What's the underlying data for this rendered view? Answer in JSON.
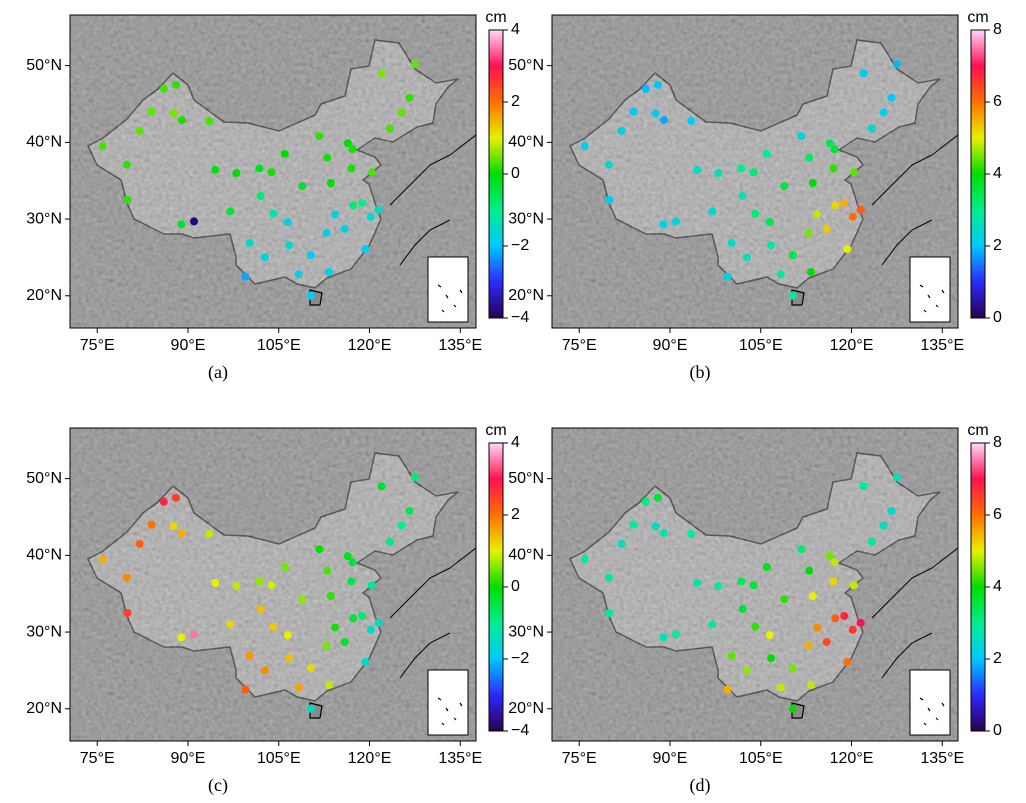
{
  "xlim": [
    70.5,
    137.6
  ],
  "ylim": [
    15.8,
    56.6
  ],
  "xticks": [
    {
      "value": 75,
      "label": "75°E"
    },
    {
      "value": 90,
      "label": "90°E"
    },
    {
      "value": 105,
      "label": "105°E"
    },
    {
      "value": 120,
      "label": "120°E"
    },
    {
      "value": 135,
      "label": "135°E"
    }
  ],
  "yticks": [
    {
      "value": 20,
      "label": "20°N"
    },
    {
      "value": 30,
      "label": "30°N"
    },
    {
      "value": 40,
      "label": "40°N"
    },
    {
      "value": 50,
      "label": "50°N"
    }
  ],
  "stations": [
    [
      75.9,
      39.5
    ],
    [
      79.9,
      37.1
    ],
    [
      84,
      44
    ],
    [
      87.6,
      43.8
    ],
    [
      86,
      47
    ],
    [
      88,
      47.5
    ],
    [
      82,
      41.5
    ],
    [
      89,
      42.9
    ],
    [
      93.5,
      42.8
    ],
    [
      91,
      29.7
    ],
    [
      88.9,
      29.3
    ],
    [
      80,
      32.5
    ],
    [
      94.5,
      36.4
    ],
    [
      98,
      36
    ],
    [
      101.8,
      36.6
    ],
    [
      103.8,
      36.1
    ],
    [
      106,
      38.5
    ],
    [
      111.7,
      40.8
    ],
    [
      116.4,
      39.9
    ],
    [
      117.2,
      39.1
    ],
    [
      123.4,
      41.8
    ],
    [
      125.3,
      43.9
    ],
    [
      126.6,
      45.8
    ],
    [
      122,
      49
    ],
    [
      127.5,
      50.2
    ],
    [
      113,
      38
    ],
    [
      108.9,
      34.3
    ],
    [
      113.6,
      34.7
    ],
    [
      117,
      36.6
    ],
    [
      120.4,
      36.1
    ],
    [
      118.8,
      32.1
    ],
    [
      121.5,
      31.2
    ],
    [
      120.2,
      30.3
    ],
    [
      117.3,
      31.8
    ],
    [
      114.3,
      30.6
    ],
    [
      112.9,
      28.2
    ],
    [
      115.9,
      28.7
    ],
    [
      119.3,
      26.1
    ],
    [
      113.3,
      23.1
    ],
    [
      110.3,
      25.3
    ],
    [
      108.3,
      22.8
    ],
    [
      106.7,
      26.6
    ],
    [
      102.7,
      25
    ],
    [
      104.1,
      30.7
    ],
    [
      106.5,
      29.6
    ],
    [
      100.2,
      26.9
    ],
    [
      99.5,
      22.5
    ],
    [
      110.3,
      20
    ],
    [
      97,
      31
    ],
    [
      102,
      33
    ]
  ],
  "panels": [
    {
      "caption": "(a)",
      "unit": "cm",
      "clim": [
        -4,
        4
      ],
      "cticks": [
        4,
        2,
        0,
        {
          "value": -2,
          "label": "−2"
        },
        {
          "value": -4,
          "label": "−4"
        }
      ],
      "colormap": [
        "#2a004f",
        "#2a2aff",
        "#00c8ff",
        "#00ee90",
        "#00dd00",
        "#e8f000",
        "#ff7000",
        "#ff1050",
        "#ffd8ff"
      ],
      "values": [
        0.3,
        0.2,
        0.4,
        0.5,
        0.3,
        0.2,
        0.4,
        0.1,
        0.3,
        -3.8,
        -0.3,
        0.2,
        -0.1,
        0,
        -0.2,
        0.1,
        0,
        0.2,
        0,
        0.1,
        0.3,
        0.4,
        0.2,
        0.5,
        0.4,
        0.1,
        -0.3,
        0,
        0.1,
        0.3,
        -1,
        -1.5,
        -1.6,
        -0.8,
        -1.8,
        -1.8,
        -1.7,
        -1.9,
        -1.8,
        -1.9,
        -1.8,
        -1.6,
        -1.7,
        -1.2,
        -1.7,
        -1.5,
        -2.2,
        -1.9,
        -0.4,
        -0.8
      ]
    },
    {
      "caption": "(b)",
      "unit": "cm",
      "clim": [
        0,
        8
      ],
      "cticks": [
        8,
        6,
        4,
        2,
        0
      ],
      "colormap": [
        "#2a004f",
        "#2a2aff",
        "#00c8ff",
        "#00ee90",
        "#00dd00",
        "#e8f000",
        "#ff7000",
        "#ff1050",
        "#ffd8ff"
      ],
      "values": [
        2.2,
        2.4,
        2.0,
        2.1,
        1.9,
        2.0,
        2.3,
        1.8,
        2.1,
        2.3,
        2.2,
        2.1,
        2.5,
        2.6,
        3.0,
        3.2,
        3.0,
        2.3,
        3.4,
        3.6,
        2.4,
        2.2,
        2.0,
        2.1,
        1.9,
        3.3,
        3.6,
        4.0,
        4.2,
        4.4,
        5.5,
        6.2,
        6.0,
        5.2,
        4.8,
        4.5,
        5.3,
        5.0,
        4.0,
        3.5,
        3.0,
        2.8,
        2.6,
        3.2,
        3.4,
        2.5,
        2.3,
        3.0,
        2.4,
        2.7
      ]
    },
    {
      "caption": "(c)",
      "unit": "cm",
      "clim": [
        -4,
        4
      ],
      "cticks": [
        4,
        2,
        0,
        {
          "value": -2,
          "label": "−2"
        },
        {
          "value": -4,
          "label": "−4"
        }
      ],
      "colormap": [
        "#2a004f",
        "#2a2aff",
        "#00c8ff",
        "#00ee90",
        "#00dd00",
        "#e8f000",
        "#ff7000",
        "#ff1050",
        "#ffd8ff"
      ],
      "values": [
        1.5,
        1.8,
        2.0,
        1.2,
        2.8,
        2.5,
        2.2,
        1.5,
        0.8,
        3.5,
        1.0,
        2.5,
        1.0,
        0.8,
        0.6,
        0.9,
        0.5,
        0,
        -0.2,
        -0.4,
        -0.9,
        -1.0,
        -0.6,
        -0.3,
        -0.8,
        0.3,
        0.6,
        0.2,
        -0.5,
        -1.2,
        -0.8,
        -1.4,
        -1.5,
        -0.4,
        0.1,
        0.5,
        -0.3,
        -1.5,
        0.8,
        1.2,
        1.6,
        1.4,
        1.8,
        1.3,
        1.0,
        1.7,
        2.2,
        -1.5,
        1.2,
        1.4
      ]
    },
    {
      "caption": "(d)",
      "unit": "cm",
      "clim": [
        0,
        8
      ],
      "cticks": [
        8,
        6,
        4,
        2,
        0
      ],
      "colormap": [
        "#2a004f",
        "#2a2aff",
        "#00c8ff",
        "#00ee90",
        "#00dd00",
        "#e8f000",
        "#ff7000",
        "#ff1050",
        "#ffd8ff"
      ],
      "values": [
        3.0,
        2.8,
        3.0,
        2.5,
        3.2,
        3.6,
        2.6,
        2.7,
        2.9,
        3.0,
        2.7,
        3.0,
        2.8,
        3.0,
        3.4,
        3.6,
        3.8,
        3.2,
        4.5,
        4.8,
        2.8,
        2.6,
        2.5,
        3.0,
        2.6,
        4.0,
        4.2,
        5.0,
        5.2,
        4.8,
        6.8,
        7.0,
        6.6,
        6.2,
        5.8,
        5.5,
        6.4,
        6.0,
        4.8,
        4.5,
        4.8,
        4.0,
        4.6,
        4.2,
        5.0,
        4.4,
        5.5,
        4.0,
        3.0,
        3.6
      ]
    }
  ]
}
